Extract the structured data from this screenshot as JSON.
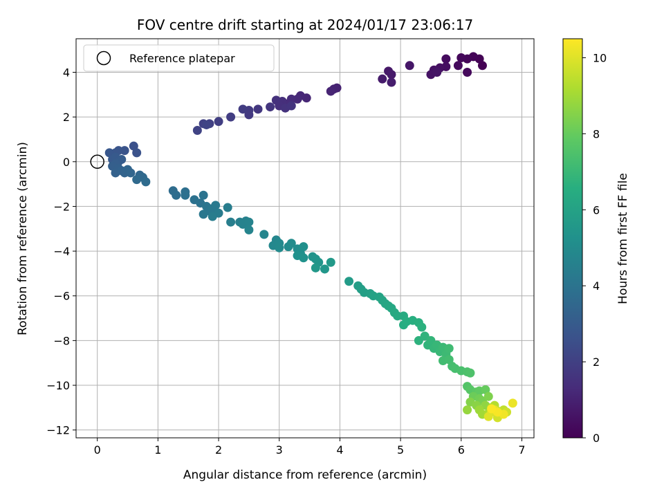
{
  "chart_data": {
    "type": "scatter",
    "title": "FOV centre drift starting at 2024/01/17 23:06:17",
    "xlabel": "Angular distance from reference (arcmin)",
    "ylabel": "Rotation from reference (arcmin)",
    "xlim": [
      -0.35,
      7.2
    ],
    "ylim": [
      -12.35,
      5.5
    ],
    "xticks": [
      0,
      1,
      2,
      3,
      4,
      5,
      6,
      7
    ],
    "xtick_labels": [
      "0",
      "1",
      "2",
      "3",
      "4",
      "5",
      "6",
      "7"
    ],
    "yticks": [
      4,
      2,
      0,
      -2,
      -4,
      -6,
      -8,
      -10,
      -12
    ],
    "ytick_labels": [
      "4",
      "2",
      "0",
      "−2",
      "−4",
      "−6",
      "−8",
      "−10",
      "−12"
    ],
    "grid": true,
    "legend": {
      "position": "top-left",
      "entries": [
        "Reference platepar"
      ]
    },
    "reference_point": {
      "x": 0,
      "y": 0,
      "label": "Reference platepar"
    },
    "colorbar": {
      "label": "Hours from first FF file",
      "colormap": "viridis",
      "range": [
        0,
        10.5
      ],
      "ticks": [
        0,
        2,
        4,
        6,
        8,
        10
      ],
      "tick_labels": [
        "0",
        "2",
        "4",
        "6",
        "8",
        "10"
      ]
    },
    "points": [
      {
        "x": 6.35,
        "y": 4.3,
        "t": 0.0
      },
      {
        "x": 6.3,
        "y": 4.6,
        "t": 0.05
      },
      {
        "x": 6.2,
        "y": 4.7,
        "t": 0.1
      },
      {
        "x": 6.1,
        "y": 4.6,
        "t": 0.15
      },
      {
        "x": 6.0,
        "y": 4.65,
        "t": 0.2
      },
      {
        "x": 6.1,
        "y": 4.0,
        "t": 0.25
      },
      {
        "x": 5.95,
        "y": 4.3,
        "t": 0.3
      },
      {
        "x": 5.75,
        "y": 4.6,
        "t": 0.35
      },
      {
        "x": 5.75,
        "y": 4.25,
        "t": 0.4
      },
      {
        "x": 5.65,
        "y": 4.2,
        "t": 0.45
      },
      {
        "x": 5.55,
        "y": 4.1,
        "t": 0.5
      },
      {
        "x": 5.5,
        "y": 3.9,
        "t": 0.55
      },
      {
        "x": 5.6,
        "y": 4.0,
        "t": 0.6
      },
      {
        "x": 5.15,
        "y": 4.3,
        "t": 0.65
      },
      {
        "x": 4.8,
        "y": 4.05,
        "t": 0.7
      },
      {
        "x": 4.85,
        "y": 3.9,
        "t": 0.75
      },
      {
        "x": 4.7,
        "y": 3.7,
        "t": 0.8
      },
      {
        "x": 4.85,
        "y": 3.55,
        "t": 0.85
      },
      {
        "x": 3.95,
        "y": 3.3,
        "t": 1.0
      },
      {
        "x": 3.9,
        "y": 3.25,
        "t": 1.05
      },
      {
        "x": 3.85,
        "y": 3.15,
        "t": 1.1
      },
      {
        "x": 3.45,
        "y": 2.85,
        "t": 1.15
      },
      {
        "x": 3.35,
        "y": 2.95,
        "t": 1.2
      },
      {
        "x": 3.3,
        "y": 2.8,
        "t": 1.25
      },
      {
        "x": 3.2,
        "y": 2.8,
        "t": 1.3
      },
      {
        "x": 3.15,
        "y": 2.6,
        "t": 1.35
      },
      {
        "x": 3.05,
        "y": 2.7,
        "t": 1.4
      },
      {
        "x": 3.0,
        "y": 2.5,
        "t": 1.45
      },
      {
        "x": 2.95,
        "y": 2.75,
        "t": 1.5
      },
      {
        "x": 3.1,
        "y": 2.4,
        "t": 1.55
      },
      {
        "x": 3.2,
        "y": 2.5,
        "t": 1.6
      },
      {
        "x": 2.85,
        "y": 2.45,
        "t": 1.65
      },
      {
        "x": 2.65,
        "y": 2.35,
        "t": 1.7
      },
      {
        "x": 2.5,
        "y": 2.1,
        "t": 1.75
      },
      {
        "x": 2.5,
        "y": 2.3,
        "t": 1.8
      },
      {
        "x": 2.4,
        "y": 2.35,
        "t": 1.85
      },
      {
        "x": 2.2,
        "y": 2.0,
        "t": 1.9
      },
      {
        "x": 2.0,
        "y": 1.8,
        "t": 1.95
      },
      {
        "x": 1.85,
        "y": 1.7,
        "t": 2.0
      },
      {
        "x": 1.75,
        "y": 1.7,
        "t": 2.05
      },
      {
        "x": 1.65,
        "y": 1.4,
        "t": 2.1
      },
      {
        "x": 1.8,
        "y": 1.65,
        "t": 2.15
      },
      {
        "x": 0.6,
        "y": 0.7,
        "t": 2.6
      },
      {
        "x": 0.65,
        "y": 0.4,
        "t": 2.65
      },
      {
        "x": 0.45,
        "y": 0.5,
        "t": 2.7
      },
      {
        "x": 0.35,
        "y": 0.5,
        "t": 2.75
      },
      {
        "x": 0.3,
        "y": 0.4,
        "t": 2.8
      },
      {
        "x": 0.2,
        "y": 0.4,
        "t": 2.85
      },
      {
        "x": 0.25,
        "y": 0.1,
        "t": 2.9
      },
      {
        "x": 0.3,
        "y": 0.2,
        "t": 2.95
      },
      {
        "x": 0.35,
        "y": 0.0,
        "t": 3.0
      },
      {
        "x": 0.4,
        "y": 0.1,
        "t": 3.05
      },
      {
        "x": 0.3,
        "y": -0.1,
        "t": 3.1
      },
      {
        "x": 0.25,
        "y": -0.2,
        "t": 3.15
      },
      {
        "x": 0.35,
        "y": -0.3,
        "t": 3.2
      },
      {
        "x": 0.3,
        "y": -0.5,
        "t": 3.25
      },
      {
        "x": 0.4,
        "y": -0.4,
        "t": 3.3
      },
      {
        "x": 0.45,
        "y": -0.5,
        "t": 3.35
      },
      {
        "x": 0.5,
        "y": -0.35,
        "t": 3.4
      },
      {
        "x": 0.55,
        "y": -0.5,
        "t": 3.45
      },
      {
        "x": 0.7,
        "y": -0.6,
        "t": 3.5
      },
      {
        "x": 0.75,
        "y": -0.7,
        "t": 3.55
      },
      {
        "x": 0.65,
        "y": -0.8,
        "t": 3.6
      },
      {
        "x": 0.8,
        "y": -0.9,
        "t": 3.65
      },
      {
        "x": 1.25,
        "y": -1.3,
        "t": 3.7
      },
      {
        "x": 1.3,
        "y": -1.5,
        "t": 3.75
      },
      {
        "x": 1.45,
        "y": -1.35,
        "t": 3.8
      },
      {
        "x": 1.45,
        "y": -1.5,
        "t": 3.85
      },
      {
        "x": 1.6,
        "y": -1.7,
        "t": 3.9
      },
      {
        "x": 1.7,
        "y": -1.85,
        "t": 3.95
      },
      {
        "x": 1.75,
        "y": -1.5,
        "t": 4.0
      },
      {
        "x": 1.8,
        "y": -2.0,
        "t": 4.05
      },
      {
        "x": 1.85,
        "y": -2.2,
        "t": 4.1
      },
      {
        "x": 1.75,
        "y": -2.35,
        "t": 4.15
      },
      {
        "x": 1.9,
        "y": -2.1,
        "t": 4.2
      },
      {
        "x": 1.95,
        "y": -1.95,
        "t": 4.25
      },
      {
        "x": 2.0,
        "y": -2.3,
        "t": 4.3
      },
      {
        "x": 1.9,
        "y": -2.45,
        "t": 4.35
      },
      {
        "x": 2.15,
        "y": -2.05,
        "t": 4.4
      },
      {
        "x": 2.2,
        "y": -2.7,
        "t": 4.45
      },
      {
        "x": 2.35,
        "y": -2.7,
        "t": 4.5
      },
      {
        "x": 2.45,
        "y": -2.65,
        "t": 4.55
      },
      {
        "x": 2.4,
        "y": -2.8,
        "t": 4.6
      },
      {
        "x": 2.5,
        "y": -2.7,
        "t": 4.65
      },
      {
        "x": 2.5,
        "y": -3.05,
        "t": 4.7
      },
      {
        "x": 2.75,
        "y": -3.25,
        "t": 4.75
      },
      {
        "x": 2.95,
        "y": -3.5,
        "t": 4.8
      },
      {
        "x": 2.9,
        "y": -3.75,
        "t": 4.85
      },
      {
        "x": 3.0,
        "y": -3.65,
        "t": 4.9
      },
      {
        "x": 3.0,
        "y": -3.85,
        "t": 4.95
      },
      {
        "x": 3.15,
        "y": -3.8,
        "t": 5.0
      },
      {
        "x": 3.2,
        "y": -3.65,
        "t": 5.05
      },
      {
        "x": 3.3,
        "y": -3.9,
        "t": 5.1
      },
      {
        "x": 3.35,
        "y": -4.1,
        "t": 5.15
      },
      {
        "x": 3.4,
        "y": -3.8,
        "t": 5.2
      },
      {
        "x": 3.3,
        "y": -4.2,
        "t": 5.25
      },
      {
        "x": 3.4,
        "y": -4.3,
        "t": 5.3
      },
      {
        "x": 3.55,
        "y": -4.25,
        "t": 5.35
      },
      {
        "x": 3.6,
        "y": -4.35,
        "t": 5.4
      },
      {
        "x": 3.65,
        "y": -4.5,
        "t": 5.45
      },
      {
        "x": 3.75,
        "y": -4.8,
        "t": 5.5
      },
      {
        "x": 3.6,
        "y": -4.75,
        "t": 5.55
      },
      {
        "x": 3.85,
        "y": -4.5,
        "t": 5.6
      },
      {
        "x": 4.15,
        "y": -5.35,
        "t": 5.7
      },
      {
        "x": 4.3,
        "y": -5.55,
        "t": 5.8
      },
      {
        "x": 4.35,
        "y": -5.7,
        "t": 5.85
      },
      {
        "x": 4.4,
        "y": -5.85,
        "t": 5.9
      },
      {
        "x": 4.5,
        "y": -5.9,
        "t": 5.95
      },
      {
        "x": 4.55,
        "y": -6.0,
        "t": 6.0
      },
      {
        "x": 4.65,
        "y": -6.05,
        "t": 6.05
      },
      {
        "x": 4.7,
        "y": -6.2,
        "t": 6.1
      },
      {
        "x": 4.75,
        "y": -6.35,
        "t": 6.15
      },
      {
        "x": 4.8,
        "y": -6.45,
        "t": 6.2
      },
      {
        "x": 4.85,
        "y": -6.55,
        "t": 6.25
      },
      {
        "x": 4.9,
        "y": -6.75,
        "t": 6.3
      },
      {
        "x": 4.95,
        "y": -6.9,
        "t": 6.35
      },
      {
        "x": 5.05,
        "y": -6.9,
        "t": 6.4
      },
      {
        "x": 5.05,
        "y": -7.3,
        "t": 6.45
      },
      {
        "x": 5.1,
        "y": -7.15,
        "t": 6.5
      },
      {
        "x": 5.2,
        "y": -7.1,
        "t": 6.55
      },
      {
        "x": 5.3,
        "y": -7.2,
        "t": 6.6
      },
      {
        "x": 5.35,
        "y": -7.4,
        "t": 6.65
      },
      {
        "x": 5.3,
        "y": -8.0,
        "t": 6.7
      },
      {
        "x": 5.4,
        "y": -7.8,
        "t": 6.75
      },
      {
        "x": 5.45,
        "y": -8.2,
        "t": 6.8
      },
      {
        "x": 5.5,
        "y": -8.0,
        "t": 6.85
      },
      {
        "x": 5.55,
        "y": -8.35,
        "t": 6.9
      },
      {
        "x": 5.6,
        "y": -8.2,
        "t": 6.95
      },
      {
        "x": 5.65,
        "y": -8.5,
        "t": 7.0
      },
      {
        "x": 5.7,
        "y": -8.3,
        "t": 7.05
      },
      {
        "x": 5.75,
        "y": -8.6,
        "t": 7.1
      },
      {
        "x": 5.8,
        "y": -8.35,
        "t": 7.15
      },
      {
        "x": 5.7,
        "y": -8.9,
        "t": 7.2
      },
      {
        "x": 5.8,
        "y": -8.85,
        "t": 7.25
      },
      {
        "x": 5.85,
        "y": -9.15,
        "t": 7.3
      },
      {
        "x": 5.9,
        "y": -9.25,
        "t": 7.35
      },
      {
        "x": 6.0,
        "y": -9.35,
        "t": 7.4
      },
      {
        "x": 6.1,
        "y": -9.4,
        "t": 7.45
      },
      {
        "x": 6.15,
        "y": -9.45,
        "t": 7.5
      },
      {
        "x": 6.1,
        "y": -10.05,
        "t": 7.6
      },
      {
        "x": 6.15,
        "y": -10.2,
        "t": 7.7
      },
      {
        "x": 6.25,
        "y": -10.3,
        "t": 7.8
      },
      {
        "x": 6.3,
        "y": -10.25,
        "t": 7.9
      },
      {
        "x": 6.4,
        "y": -10.2,
        "t": 8.0
      },
      {
        "x": 6.2,
        "y": -10.5,
        "t": 8.1
      },
      {
        "x": 6.3,
        "y": -10.6,
        "t": 8.2
      },
      {
        "x": 6.35,
        "y": -10.7,
        "t": 8.3
      },
      {
        "x": 6.45,
        "y": -10.5,
        "t": 8.4
      },
      {
        "x": 6.15,
        "y": -10.75,
        "t": 8.5
      },
      {
        "x": 6.25,
        "y": -10.9,
        "t": 8.6
      },
      {
        "x": 6.4,
        "y": -10.9,
        "t": 8.7
      },
      {
        "x": 6.1,
        "y": -11.1,
        "t": 8.8
      },
      {
        "x": 6.3,
        "y": -11.1,
        "t": 8.9
      },
      {
        "x": 6.35,
        "y": -11.3,
        "t": 9.0
      },
      {
        "x": 6.45,
        "y": -11.25,
        "t": 9.1
      },
      {
        "x": 6.5,
        "y": -11.0,
        "t": 9.2
      },
      {
        "x": 6.55,
        "y": -10.9,
        "t": 9.3
      },
      {
        "x": 6.6,
        "y": -11.15,
        "t": 9.4
      },
      {
        "x": 6.7,
        "y": -11.1,
        "t": 9.5
      },
      {
        "x": 6.65,
        "y": -11.3,
        "t": 9.6
      },
      {
        "x": 6.75,
        "y": -11.2,
        "t": 9.7
      },
      {
        "x": 6.6,
        "y": -11.45,
        "t": 9.8
      },
      {
        "x": 6.5,
        "y": -11.2,
        "t": 9.9
      },
      {
        "x": 6.45,
        "y": -11.4,
        "t": 10.0
      },
      {
        "x": 6.55,
        "y": -11.1,
        "t": 10.1
      },
      {
        "x": 6.85,
        "y": -10.8,
        "t": 10.2
      },
      {
        "x": 6.7,
        "y": -11.3,
        "t": 10.3
      },
      {
        "x": 6.6,
        "y": -11.2,
        "t": 10.4
      },
      {
        "x": 6.5,
        "y": -11.05,
        "t": 10.45
      }
    ]
  }
}
